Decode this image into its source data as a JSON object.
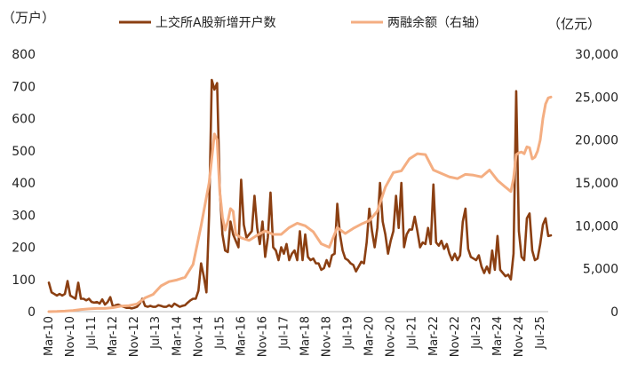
{
  "chart_data": {
    "type": "line",
    "y_unit_left": "（万户）",
    "y_unit_right": "（亿元）",
    "legend_position": "top",
    "grid": false,
    "y_left": {
      "lim": [
        0,
        800
      ],
      "ticks": [
        "0",
        "100",
        "200",
        "300",
        "400",
        "500",
        "600",
        "700",
        "800"
      ]
    },
    "y_right": {
      "lim": [
        0,
        30000
      ],
      "ticks": [
        "0",
        "5,000",
        "10,000",
        "15,000",
        "20,000",
        "25,000",
        "30,000"
      ]
    },
    "x_range": [
      "2010-03",
      "2025-10"
    ],
    "x_ticks": [
      "Mar-10",
      "Nov-10",
      "Jul-11",
      "Mar-12",
      "Nov-12",
      "Jul-13",
      "Mar-14",
      "Nov-14",
      "Jul-15",
      "Mar-16",
      "Nov-16",
      "Jul-17",
      "Mar-18",
      "Nov-18",
      "Jul-19",
      "Mar-20",
      "Nov-20",
      "Jul-21",
      "Mar-22",
      "Nov-22",
      "Jul-23",
      "Mar-24",
      "Nov-24",
      "Jul-25"
    ],
    "series": [
      {
        "name": "上交所A股新增开户数",
        "axis": "left",
        "color": "#8b3f12",
        "points": [
          [
            "2010-03",
            90
          ],
          [
            "2010-04",
            60
          ],
          [
            "2010-05",
            55
          ],
          [
            "2010-06",
            50
          ],
          [
            "2010-07",
            55
          ],
          [
            "2010-08",
            50
          ],
          [
            "2010-09",
            55
          ],
          [
            "2010-10",
            95
          ],
          [
            "2010-11",
            50
          ],
          [
            "2010-12",
            45
          ],
          [
            "2011-01",
            40
          ],
          [
            "2011-02",
            90
          ],
          [
            "2011-03",
            40
          ],
          [
            "2011-04",
            40
          ],
          [
            "2011-05",
            35
          ],
          [
            "2011-06",
            40
          ],
          [
            "2011-07",
            30
          ],
          [
            "2011-08",
            28
          ],
          [
            "2011-09",
            30
          ],
          [
            "2011-10",
            25
          ],
          [
            "2011-11",
            38
          ],
          [
            "2011-12",
            22
          ],
          [
            "2012-01",
            30
          ],
          [
            "2012-02",
            45
          ],
          [
            "2012-03",
            15
          ],
          [
            "2012-04",
            20
          ],
          [
            "2012-05",
            22
          ],
          [
            "2012-06",
            18
          ],
          [
            "2012-07",
            15
          ],
          [
            "2012-08",
            12
          ],
          [
            "2012-09",
            12
          ],
          [
            "2012-10",
            10
          ],
          [
            "2012-11",
            12
          ],
          [
            "2012-12",
            15
          ],
          [
            "2013-01",
            25
          ],
          [
            "2013-02",
            40
          ],
          [
            "2013-03",
            18
          ],
          [
            "2013-04",
            15
          ],
          [
            "2013-05",
            18
          ],
          [
            "2013-06",
            15
          ],
          [
            "2013-07",
            15
          ],
          [
            "2013-08",
            20
          ],
          [
            "2013-09",
            18
          ],
          [
            "2013-10",
            15
          ],
          [
            "2013-11",
            15
          ],
          [
            "2013-12",
            20
          ],
          [
            "2014-01",
            15
          ],
          [
            "2014-02",
            25
          ],
          [
            "2014-03",
            20
          ],
          [
            "2014-04",
            15
          ],
          [
            "2014-05",
            18
          ],
          [
            "2014-06",
            20
          ],
          [
            "2014-07",
            28
          ],
          [
            "2014-08",
            35
          ],
          [
            "2014-09",
            40
          ],
          [
            "2014-10",
            40
          ],
          [
            "2014-11",
            65
          ],
          [
            "2014-12",
            150
          ],
          [
            "2015-01",
            110
          ],
          [
            "2015-02",
            60
          ],
          [
            "2015-03",
            300
          ],
          [
            "2015-04",
            720
          ],
          [
            "2015-05",
            690
          ],
          [
            "2015-06",
            710
          ],
          [
            "2015-07",
            380
          ],
          [
            "2015-08",
            240
          ],
          [
            "2015-09",
            190
          ],
          [
            "2015-10",
            185
          ],
          [
            "2015-11",
            280
          ],
          [
            "2015-12",
            240
          ],
          [
            "2016-01",
            220
          ],
          [
            "2016-02",
            200
          ],
          [
            "2016-03",
            410
          ],
          [
            "2016-04",
            270
          ],
          [
            "2016-05",
            230
          ],
          [
            "2016-06",
            240
          ],
          [
            "2016-07",
            250
          ],
          [
            "2016-08",
            360
          ],
          [
            "2016-09",
            260
          ],
          [
            "2016-10",
            210
          ],
          [
            "2016-11",
            280
          ],
          [
            "2016-12",
            170
          ],
          [
            "2017-01",
            230
          ],
          [
            "2017-02",
            370
          ],
          [
            "2017-03",
            200
          ],
          [
            "2017-04",
            190
          ],
          [
            "2017-05",
            160
          ],
          [
            "2017-06",
            200
          ],
          [
            "2017-07",
            180
          ],
          [
            "2017-08",
            210
          ],
          [
            "2017-09",
            160
          ],
          [
            "2017-10",
            180
          ],
          [
            "2017-11",
            190
          ],
          [
            "2017-12",
            160
          ],
          [
            "2018-01",
            250
          ],
          [
            "2018-02",
            160
          ],
          [
            "2018-03",
            240
          ],
          [
            "2018-04",
            170
          ],
          [
            "2018-05",
            160
          ],
          [
            "2018-06",
            165
          ],
          [
            "2018-07",
            150
          ],
          [
            "2018-08",
            150
          ],
          [
            "2018-09",
            130
          ],
          [
            "2018-10",
            135
          ],
          [
            "2018-11",
            160
          ],
          [
            "2018-12",
            140
          ],
          [
            "2019-01",
            175
          ],
          [
            "2019-02",
            180
          ],
          [
            "2019-03",
            335
          ],
          [
            "2019-04",
            240
          ],
          [
            "2019-05",
            190
          ],
          [
            "2019-06",
            165
          ],
          [
            "2019-07",
            160
          ],
          [
            "2019-08",
            150
          ],
          [
            "2019-09",
            145
          ],
          [
            "2019-10",
            125
          ],
          [
            "2019-11",
            140
          ],
          [
            "2019-12",
            155
          ],
          [
            "2020-01",
            150
          ],
          [
            "2020-02",
            215
          ],
          [
            "2020-03",
            320
          ],
          [
            "2020-04",
            250
          ],
          [
            "2020-05",
            200
          ],
          [
            "2020-06",
            260
          ],
          [
            "2020-07",
            400
          ],
          [
            "2020-08",
            280
          ],
          [
            "2020-09",
            240
          ],
          [
            "2020-10",
            180
          ],
          [
            "2020-11",
            220
          ],
          [
            "2020-12",
            250
          ],
          [
            "2021-01",
            360
          ],
          [
            "2021-02",
            260
          ],
          [
            "2021-03",
            400
          ],
          [
            "2021-04",
            200
          ],
          [
            "2021-05",
            240
          ],
          [
            "2021-06",
            255
          ],
          [
            "2021-07",
            255
          ],
          [
            "2021-08",
            295
          ],
          [
            "2021-09",
            250
          ],
          [
            "2021-10",
            200
          ],
          [
            "2021-11",
            215
          ],
          [
            "2021-12",
            210
          ],
          [
            "2022-01",
            260
          ],
          [
            "2022-02",
            210
          ],
          [
            "2022-03",
            395
          ],
          [
            "2022-04",
            215
          ],
          [
            "2022-05",
            205
          ],
          [
            "2022-06",
            220
          ],
          [
            "2022-07",
            195
          ],
          [
            "2022-08",
            210
          ],
          [
            "2022-09",
            180
          ],
          [
            "2022-10",
            160
          ],
          [
            "2022-11",
            180
          ],
          [
            "2022-12",
            160
          ],
          [
            "2023-01",
            175
          ],
          [
            "2023-02",
            280
          ],
          [
            "2023-03",
            320
          ],
          [
            "2023-04",
            195
          ],
          [
            "2023-05",
            170
          ],
          [
            "2023-06",
            165
          ],
          [
            "2023-07",
            160
          ],
          [
            "2023-08",
            175
          ],
          [
            "2023-09",
            140
          ],
          [
            "2023-10",
            120
          ],
          [
            "2023-11",
            140
          ],
          [
            "2023-12",
            120
          ],
          [
            "2024-01",
            190
          ],
          [
            "2024-02",
            130
          ],
          [
            "2024-03",
            235
          ],
          [
            "2024-04",
            130
          ],
          [
            "2024-05",
            120
          ],
          [
            "2024-06",
            110
          ],
          [
            "2024-07",
            115
          ],
          [
            "2024-08",
            100
          ],
          [
            "2024-09",
            180
          ],
          [
            "2024-10",
            685
          ],
          [
            "2024-11",
            250
          ],
          [
            "2024-12",
            170
          ],
          [
            "2025-01",
            160
          ],
          [
            "2025-02",
            290
          ],
          [
            "2025-03",
            305
          ],
          [
            "2025-04",
            190
          ],
          [
            "2025-05",
            160
          ],
          [
            "2025-06",
            165
          ],
          [
            "2025-07",
            210
          ],
          [
            "2025-08",
            270
          ],
          [
            "2025-09",
            290
          ],
          [
            "2025-10",
            235
          ],
          [
            "2025-11",
            237
          ]
        ]
      },
      {
        "name": "两融余额（右轴）",
        "axis": "right",
        "color": "#f4ae82",
        "points": [
          [
            "2010-03",
            0
          ],
          [
            "2010-06",
            20
          ],
          [
            "2010-09",
            60
          ],
          [
            "2010-12",
            130
          ],
          [
            "2011-03",
            250
          ],
          [
            "2011-06",
            320
          ],
          [
            "2011-09",
            370
          ],
          [
            "2011-12",
            380
          ],
          [
            "2012-03",
            460
          ],
          [
            "2012-06",
            650
          ],
          [
            "2012-09",
            700
          ],
          [
            "2012-12",
            900
          ],
          [
            "2013-03",
            1600
          ],
          [
            "2013-06",
            2000
          ],
          [
            "2013-09",
            3000
          ],
          [
            "2013-12",
            3500
          ],
          [
            "2014-03",
            3700
          ],
          [
            "2014-06",
            4000
          ],
          [
            "2014-09",
            5500
          ],
          [
            "2014-12",
            10000
          ],
          [
            "2015-03",
            15000
          ],
          [
            "2015-05",
            20700
          ],
          [
            "2015-06",
            20000
          ],
          [
            "2015-07",
            14000
          ],
          [
            "2015-08",
            11000
          ],
          [
            "2015-09",
            9500
          ],
          [
            "2015-10",
            10500
          ],
          [
            "2015-11",
            12000
          ],
          [
            "2015-12",
            11700
          ],
          [
            "2016-01",
            9000
          ],
          [
            "2016-03",
            8600
          ],
          [
            "2016-06",
            8300
          ],
          [
            "2016-09",
            8900
          ],
          [
            "2016-12",
            9400
          ],
          [
            "2017-03",
            9000
          ],
          [
            "2017-06",
            9000
          ],
          [
            "2017-09",
            9800
          ],
          [
            "2017-12",
            10300
          ],
          [
            "2018-03",
            10000
          ],
          [
            "2018-06",
            9300
          ],
          [
            "2018-09",
            7900
          ],
          [
            "2018-12",
            7500
          ],
          [
            "2019-03",
            9800
          ],
          [
            "2019-06",
            9100
          ],
          [
            "2019-09",
            9700
          ],
          [
            "2019-12",
            10200
          ],
          [
            "2020-03",
            10600
          ],
          [
            "2020-06",
            11700
          ],
          [
            "2020-09",
            14500
          ],
          [
            "2020-12",
            16200
          ],
          [
            "2021-03",
            16400
          ],
          [
            "2021-06",
            17800
          ],
          [
            "2021-09",
            18400
          ],
          [
            "2021-12",
            18300
          ],
          [
            "2022-03",
            16500
          ],
          [
            "2022-06",
            16100
          ],
          [
            "2022-09",
            15700
          ],
          [
            "2022-12",
            15500
          ],
          [
            "2023-03",
            16000
          ],
          [
            "2023-06",
            15900
          ],
          [
            "2023-09",
            15700
          ],
          [
            "2023-12",
            16500
          ],
          [
            "2024-03",
            15300
          ],
          [
            "2024-06",
            14500
          ],
          [
            "2024-08",
            14000
          ],
          [
            "2024-09",
            15500
          ],
          [
            "2024-10",
            18300
          ],
          [
            "2024-11",
            18500
          ],
          [
            "2024-12",
            18600
          ],
          [
            "2025-01",
            18400
          ],
          [
            "2025-02",
            19200
          ],
          [
            "2025-03",
            19100
          ],
          [
            "2025-04",
            17800
          ],
          [
            "2025-05",
            18000
          ],
          [
            "2025-06",
            18700
          ],
          [
            "2025-07",
            20000
          ],
          [
            "2025-08",
            22500
          ],
          [
            "2025-09",
            24200
          ],
          [
            "2025-10",
            24900
          ],
          [
            "2025-11",
            25000
          ]
        ]
      }
    ]
  }
}
